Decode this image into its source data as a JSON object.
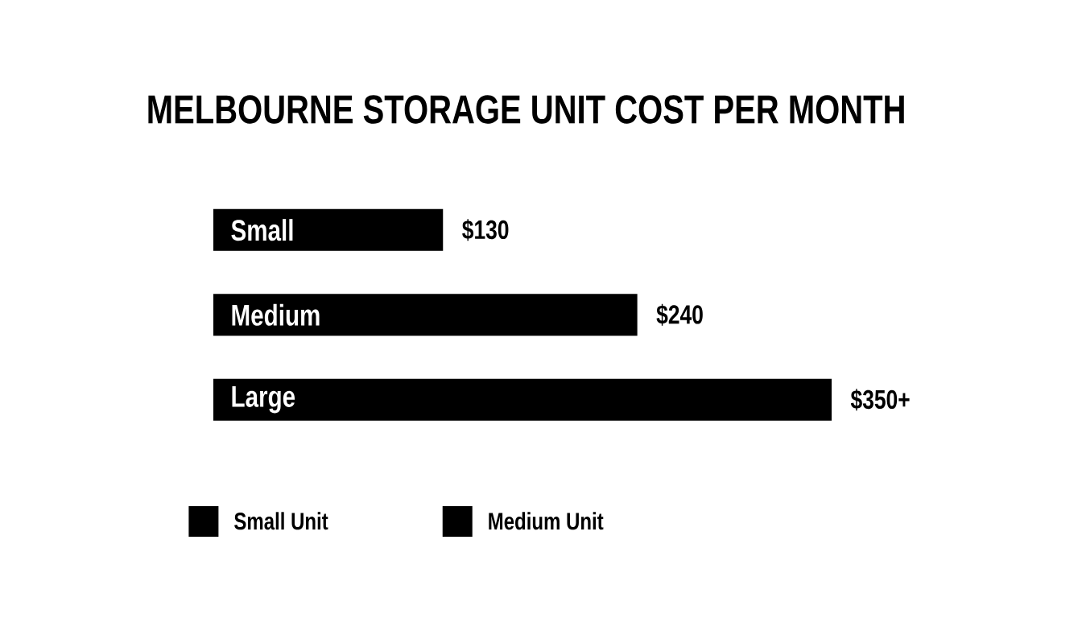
{
  "chart_data": {
    "type": "bar",
    "title": "MELBOURNE STORAGE UNIT COST PER MONTH",
    "orientation": "horizontal",
    "categories": [
      "Small",
      "Medium",
      "Large"
    ],
    "series": [
      {
        "name": "Small Unit",
        "color": "#000000",
        "values": [
          130,
          240,
          350
        ],
        "value_labels": [
          "$130",
          "$240",
          "$350+"
        ]
      },
      {
        "name": "Medium Unit",
        "color": "#000000",
        "values": [
          null,
          null,
          null
        ]
      }
    ],
    "legend": "bottom",
    "tick_labels": "y"
  }
}
